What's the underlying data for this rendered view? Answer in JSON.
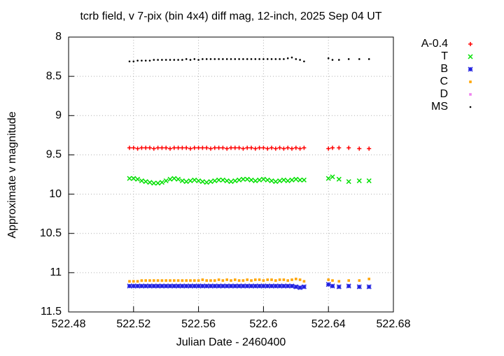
{
  "chart_data": {
    "type": "scatter",
    "title": "tcrb field, v 7-pix (bin 4x4) diff mag, 12-inch, 2025 Sep 04 UT",
    "x_label": "Julian Date - 2460400",
    "y_label": "Approximate v magnitude",
    "xlim": [
      522.48,
      522.68
    ],
    "xticks": [
      522.48,
      522.52,
      522.56,
      522.6,
      522.64,
      522.68
    ],
    "ylim": [
      8,
      11.5
    ],
    "y_inverted": true,
    "yticks": [
      8,
      8.5,
      9,
      9.5,
      10,
      10.5,
      11,
      11.5
    ],
    "grid": true,
    "legend": "outside-right",
    "x": [
      522.5175,
      522.52,
      522.5225,
      522.525,
      522.5275,
      522.53,
      522.5325,
      522.535,
      522.5375,
      522.54,
      522.5425,
      522.545,
      522.5475,
      522.55,
      522.5525,
      522.555,
      522.5575,
      522.56,
      522.5625,
      522.565,
      522.5675,
      522.57,
      522.5725,
      522.575,
      522.5775,
      522.58,
      522.5825,
      522.585,
      522.5875,
      522.59,
      522.5925,
      522.595,
      522.5975,
      522.6,
      522.6025,
      522.605,
      522.6075,
      522.61,
      522.6125,
      522.615,
      522.6175,
      522.62,
      522.6225,
      522.625,
      522.64,
      522.6425,
      522.6465,
      522.6525,
      522.659,
      522.665
    ],
    "series": [
      {
        "name": "A-0.4",
        "color": "#ff0000",
        "marker": "plus",
        "values": [
          9.41,
          9.41,
          9.42,
          9.41,
          9.41,
          9.41,
          9.42,
          9.41,
          9.41,
          9.41,
          9.42,
          9.41,
          9.41,
          9.41,
          9.41,
          9.42,
          9.41,
          9.41,
          9.41,
          9.41,
          9.42,
          9.41,
          9.41,
          9.41,
          9.42,
          9.41,
          9.41,
          9.41,
          9.42,
          9.41,
          9.41,
          9.42,
          9.41,
          9.41,
          9.42,
          9.41,
          9.42,
          9.41,
          9.42,
          9.41,
          9.42,
          9.41,
          9.42,
          9.41,
          9.42,
          9.41,
          9.41,
          9.41,
          9.42,
          9.42
        ]
      },
      {
        "name": "T",
        "color": "#00e000",
        "marker": "cross",
        "values": [
          9.8,
          9.8,
          9.81,
          9.83,
          9.84,
          9.85,
          9.86,
          9.86,
          9.85,
          9.83,
          9.81,
          9.8,
          9.81,
          9.83,
          9.84,
          9.83,
          9.82,
          9.83,
          9.84,
          9.85,
          9.84,
          9.83,
          9.82,
          9.82,
          9.83,
          9.84,
          9.83,
          9.82,
          9.81,
          9.81,
          9.82,
          9.83,
          9.82,
          9.81,
          9.82,
          9.83,
          9.84,
          9.83,
          9.82,
          9.83,
          9.82,
          9.81,
          9.82,
          9.82,
          9.8,
          9.78,
          9.81,
          9.84,
          9.83,
          9.83
        ]
      },
      {
        "name": "B",
        "color": "#2020e0",
        "marker": "star",
        "values": [
          11.17,
          11.17,
          11.17,
          11.17,
          11.17,
          11.17,
          11.17,
          11.17,
          11.17,
          11.17,
          11.17,
          11.17,
          11.17,
          11.17,
          11.17,
          11.17,
          11.17,
          11.17,
          11.17,
          11.17,
          11.17,
          11.17,
          11.17,
          11.17,
          11.17,
          11.17,
          11.17,
          11.17,
          11.17,
          11.17,
          11.17,
          11.17,
          11.17,
          11.17,
          11.17,
          11.17,
          11.17,
          11.17,
          11.17,
          11.17,
          11.17,
          11.18,
          11.19,
          11.18,
          11.15,
          11.17,
          11.18,
          11.17,
          11.18,
          11.18
        ]
      },
      {
        "name": "C",
        "color": "#ffa500",
        "marker": "square",
        "values": [
          11.11,
          11.11,
          11.11,
          11.1,
          11.1,
          11.1,
          11.1,
          11.1,
          11.1,
          11.1,
          11.1,
          11.1,
          11.1,
          11.1,
          11.1,
          11.1,
          11.1,
          11.1,
          11.09,
          11.1,
          11.1,
          11.1,
          11.09,
          11.1,
          11.09,
          11.1,
          11.09,
          11.1,
          11.1,
          11.09,
          11.1,
          11.09,
          11.09,
          11.1,
          11.09,
          11.09,
          11.1,
          11.09,
          11.09,
          11.1,
          11.09,
          11.08,
          11.09,
          11.11,
          11.09,
          11.1,
          11.11,
          11.1,
          11.1,
          11.08
        ]
      },
      {
        "name": "D",
        "color": "#ee82ee",
        "marker": "square",
        "values": [
          null,
          null,
          null,
          null,
          null,
          null,
          null,
          null,
          null,
          null,
          null,
          null,
          null,
          null,
          null,
          null,
          null,
          null,
          null,
          null,
          null,
          null,
          null,
          null,
          null,
          null,
          null,
          null,
          null,
          null,
          null,
          null,
          null,
          null,
          null,
          null,
          null,
          null,
          null,
          null,
          null,
          null,
          null,
          null,
          null,
          null,
          null,
          null,
          null,
          null
        ]
      },
      {
        "name": "MS",
        "color": "#000000",
        "marker": "dot",
        "values": [
          8.31,
          8.31,
          8.3,
          8.3,
          8.3,
          8.3,
          8.29,
          8.29,
          8.29,
          8.29,
          8.29,
          8.29,
          8.29,
          8.29,
          8.28,
          8.29,
          8.28,
          8.29,
          8.28,
          8.28,
          8.28,
          8.28,
          8.28,
          8.28,
          8.28,
          8.28,
          8.28,
          8.28,
          8.28,
          8.28,
          8.28,
          8.28,
          8.28,
          8.28,
          8.28,
          8.28,
          8.28,
          8.28,
          8.28,
          8.27,
          8.26,
          8.28,
          8.29,
          8.31,
          8.27,
          8.29,
          8.29,
          8.28,
          8.28,
          8.28
        ]
      }
    ]
  }
}
